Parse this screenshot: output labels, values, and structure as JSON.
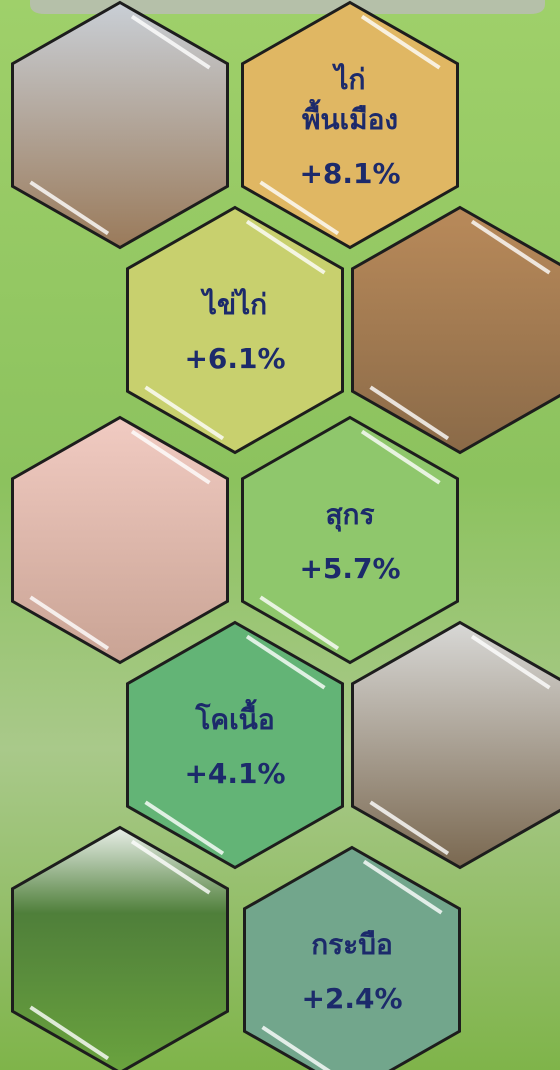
{
  "items": [
    {
      "name": [
        "ไก่",
        "พื้นเมือง"
      ],
      "change": "+8.1%"
    },
    {
      "name": [
        "ไข่ไก่"
      ],
      "change": "+6.1%"
    },
    {
      "name": [
        "สุกร"
      ],
      "change": "+5.7%"
    },
    {
      "name": [
        "โคเนื้อ"
      ],
      "change": "+4.1%"
    },
    {
      "name": [
        "กระบือ"
      ],
      "change": "+2.4%"
    }
  ]
}
